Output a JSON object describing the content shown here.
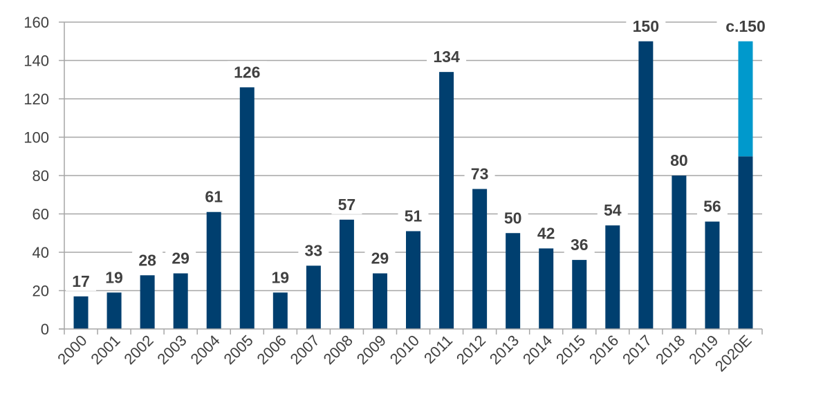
{
  "chart_data": {
    "type": "bar",
    "title": "",
    "xlabel": "",
    "ylabel": "",
    "ylim": [
      0,
      160
    ],
    "yticks": [
      0,
      20,
      40,
      60,
      80,
      100,
      120,
      140,
      160
    ],
    "grid": true,
    "legend": "none",
    "categories": [
      "2000",
      "2001",
      "2002",
      "2003",
      "2004",
      "2005",
      "2006",
      "2007",
      "2008",
      "2009",
      "2010",
      "2011",
      "2012",
      "2013",
      "2014",
      "2015",
      "2016",
      "2017",
      "2018",
      "2019",
      "2020E"
    ],
    "values": [
      17,
      19,
      28,
      29,
      61,
      126,
      19,
      33,
      57,
      29,
      51,
      134,
      73,
      50,
      42,
      36,
      54,
      150,
      80,
      56,
      90
    ],
    "estimate_extension": [
      0,
      0,
      0,
      0,
      0,
      0,
      0,
      0,
      0,
      0,
      0,
      0,
      0,
      0,
      0,
      0,
      0,
      0,
      0,
      0,
      60
    ],
    "data_labels": [
      "17",
      "19",
      "28",
      "29",
      "61",
      "126",
      "19",
      "33",
      "57",
      "29",
      "51",
      "134",
      "73",
      "50",
      "42",
      "36",
      "54",
      "150",
      "80",
      "56",
      "c.150"
    ],
    "colors": {
      "bar": "#003f6f",
      "estimate": "#0099cc",
      "grid": "#a6a6a6",
      "axis": "#a6a6a6",
      "text": "#404040"
    }
  }
}
